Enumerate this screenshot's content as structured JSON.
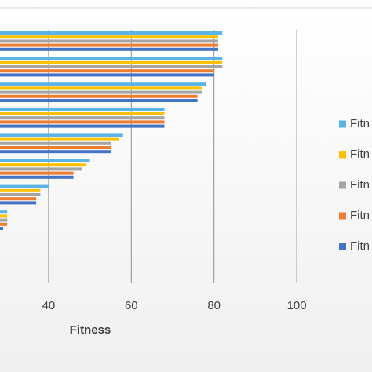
{
  "chart_data": {
    "type": "barh",
    "x_label": "Fitness",
    "categories": [
      null,
      null,
      null,
      null,
      null,
      null,
      null,
      null
    ],
    "series": [
      {
        "name": "Fitn",
        "color": "#5ab4e8",
        "values": [
          82,
          82,
          78,
          68,
          58,
          50,
          40,
          30
        ]
      },
      {
        "name": "Fitn",
        "color": "#ffc000",
        "values": [
          81,
          82,
          77,
          68,
          57,
          49,
          38,
          30
        ]
      },
      {
        "name": "Fitn",
        "color": "#a5a5a5",
        "values": [
          81,
          82,
          77,
          68,
          55,
          48,
          38,
          30
        ]
      },
      {
        "name": "Fitn",
        "color": "#ed7d31",
        "values": [
          81,
          80,
          76,
          68,
          55,
          46,
          37,
          30
        ]
      },
      {
        "name": "Fitn",
        "color": "#4472c4",
        "values": [
          81,
          80,
          76,
          68,
          55,
          46,
          37,
          29
        ]
      }
    ],
    "xlim": [
      28.25,
      118.2
    ],
    "xticks": [
      40,
      60,
      80,
      100
    ],
    "grid": true
  }
}
